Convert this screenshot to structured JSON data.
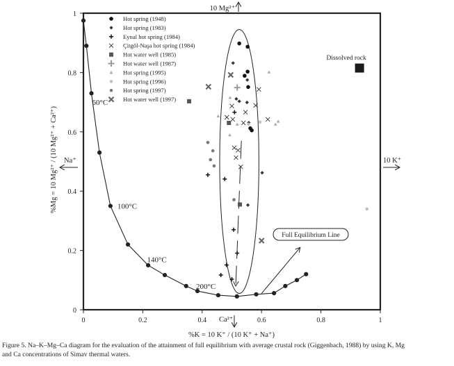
{
  "chart_data": {
    "type": "scatter",
    "title": "",
    "xlabel": "%K = 10 K⁺ / (10 K⁺ + Na⁺)",
    "ylabel": "%Mg = 10 Mg²⁺ / (10 Mg²⁺ + Ca²⁺)",
    "xlim": [
      0,
      1
    ],
    "ylim": [
      0,
      1
    ],
    "grid": false,
    "legend_position": "top-left",
    "x_ticks": [
      "0",
      "0.2",
      "0.4",
      "0.6",
      "0.8",
      "1"
    ],
    "y_ticks": [
      "0",
      "0.2",
      "0.4",
      "0.6",
      "0.8",
      "1"
    ],
    "x_tick_values": [
      0,
      0.2,
      0.4,
      0.6,
      0.8,
      1
    ],
    "y_tick_values": [
      0,
      0.2,
      0.4,
      0.6,
      0.8,
      1
    ],
    "corner_labels": {
      "top": "10 Mg²⁺",
      "left": "Na⁺",
      "right": "10 K⁺",
      "bottom": "Ca²⁺"
    },
    "equilibrium_curve": {
      "x": [
        0,
        0.01,
        0.027,
        0.054,
        0.091,
        0.15,
        0.218,
        0.274,
        0.346,
        0.384,
        0.454,
        0.517,
        0.582,
        0.642,
        0.68,
        0.719,
        0.75
      ],
      "y": [
        0.975,
        0.89,
        0.73,
        0.53,
        0.35,
        0.22,
        0.15,
        0.117,
        0.08,
        0.063,
        0.049,
        0.045,
        0.052,
        0.056,
        0.08,
        0.1,
        0.12
      ]
    },
    "temperature_labels": [
      {
        "text": "60°C",
        "x": 0.02,
        "y": 0.7
      },
      {
        "text": "100°C",
        "x": 0.105,
        "y": 0.35
      },
      {
        "text": "140°C",
        "x": 0.205,
        "y": 0.17
      },
      {
        "text": "200°C",
        "x": 0.37,
        "y": 0.08
      }
    ],
    "annotations": {
      "dissolved_rock": {
        "label": "Dissolved rock",
        "x": 0.93,
        "y": 0.815
      },
      "full_equilibrium": {
        "label": "Full Equilibrium Line",
        "arrow_from": [
          0.6,
          0.055
        ],
        "arrow_to": [
          0.73,
          0.21
        ]
      },
      "ellipse": {
        "cx": 0.525,
        "cy": 0.5,
        "rx": 0.066,
        "ry": 0.445
      }
    },
    "series": [
      {
        "name": "Hot spring (1948)",
        "marker": "circle",
        "color": "#111111",
        "points": [
          [
            0.525,
            0.898
          ],
          [
            0.553,
            0.887
          ],
          [
            0.553,
            0.803
          ],
          [
            0.543,
            0.789
          ],
          [
            0.555,
            0.751
          ],
          [
            0.567,
            0.605
          ],
          [
            0.562,
            0.612
          ]
        ]
      },
      {
        "name": "Hot spring (1983)",
        "marker": "diamond",
        "color": "#333333",
        "points": [
          [
            0.504,
            0.832
          ],
          [
            0.552,
            0.775
          ],
          [
            0.515,
            0.711
          ],
          [
            0.525,
            0.703
          ],
          [
            0.551,
            0.699
          ],
          [
            0.557,
            0.631
          ],
          [
            0.602,
            0.462
          ],
          [
            0.554,
            0.353
          ]
        ]
      },
      {
        "name": "Eynal hot spring (1984)",
        "marker": "plus",
        "color": "#111111",
        "points": [
          [
            0.509,
            0.666
          ],
          [
            0.419,
            0.455
          ],
          [
            0.476,
            0.441
          ],
          [
            0.506,
            0.27
          ],
          [
            0.518,
            0.191
          ],
          [
            0.482,
            0.151
          ],
          [
            0.463,
            0.117
          ],
          [
            0.5,
            0.103
          ]
        ]
      },
      {
        "name": "Çitgöl-Naşa hot spring (1984)",
        "marker": "x",
        "color": "#333333",
        "points": [
          [
            0.5,
            0.687
          ],
          [
            0.58,
            0.689
          ],
          [
            0.546,
            0.666
          ],
          [
            0.483,
            0.649
          ],
          [
            0.503,
            0.642
          ],
          [
            0.539,
            0.63
          ],
          [
            0.621,
            0.642
          ],
          [
            0.591,
            0.743
          ],
          [
            0.508,
            0.546
          ],
          [
            0.521,
            0.538
          ],
          [
            0.514,
            0.513
          ],
          [
            0.53,
            0.482
          ]
        ]
      },
      {
        "name": "Hot water well (1985)",
        "marker": "square",
        "color": "#555555",
        "points": [
          [
            0.49,
            0.63
          ],
          [
            0.527,
            0.355
          ],
          [
            0.356,
            0.703
          ]
        ]
      },
      {
        "name": "Hot water well (1987)",
        "marker": "bigplus",
        "color": "#999999",
        "points": [
          [
            0.518,
            0.749
          ]
        ]
      },
      {
        "name": "Hot spring (1995)",
        "marker": "triangle",
        "color": "#aaaaaa",
        "points": [
          [
            0.625,
            0.801
          ],
          [
            0.494,
            0.715
          ],
          [
            0.454,
            0.653
          ],
          [
            0.518,
            0.625
          ],
          [
            0.647,
            0.625
          ],
          [
            0.493,
            0.589
          ],
          [
            0.656,
            0.635
          ]
        ]
      },
      {
        "name": "Hot spring (1996)",
        "marker": "star",
        "color": "#bbbbbb",
        "points": [
          [
            0.595,
            0.633
          ],
          [
            0.955,
            0.34
          ],
          [
            0.556,
            0.626
          ]
        ]
      },
      {
        "name": "Hot spring (1997)",
        "marker": "dot",
        "color": "#777777",
        "points": [
          [
            0.419,
            0.564
          ],
          [
            0.436,
            0.536
          ],
          [
            0.428,
            0.506
          ],
          [
            0.44,
            0.485
          ],
          [
            0.507,
            0.371
          ]
        ]
      },
      {
        "name": "Hot water well (1997)",
        "marker": "boldx",
        "color": "#666666",
        "points": [
          [
            0.496,
            0.792
          ],
          [
            0.421,
            0.752
          ],
          [
            0.6,
            0.233
          ]
        ]
      }
    ]
  },
  "caption": {
    "line1": "Figure 5. Na–K–Mg–Ca diagram for the evaluation of the attainment of full equilibrium with average crustal rock (Giggenbach, 1988) by using K, Mg",
    "line2": "and Ca concentrations of Simav thermal waters."
  }
}
